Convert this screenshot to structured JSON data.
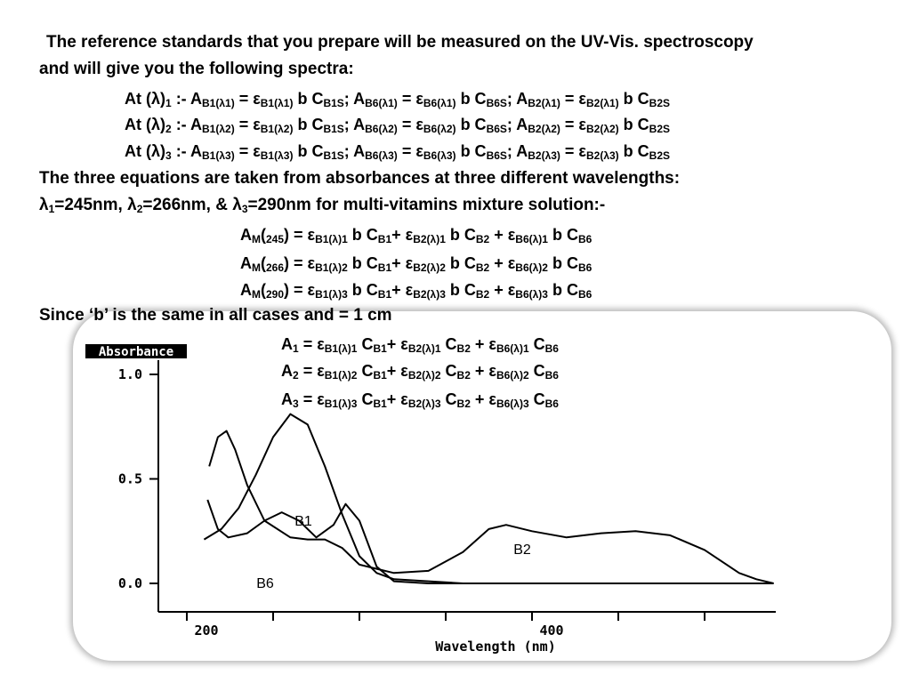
{
  "intro": {
    "line1": "The reference standards that you prepare will be measured on the UV-Vis. spectroscopy",
    "line2": "and will give you the following spectra:"
  },
  "at_equations": [
    {
      "label": "At (λ)",
      "lam_sub": "1",
      "A1": "B1(λ1)",
      "e1": "B1(λ1)",
      "C1": "B1S",
      "A2": "B6(λ1)",
      "e2": "B6(λ1)",
      "C2": "B6S",
      "A3": "B2(λ1)",
      "e3": "B2(λ1)",
      "C3": "B2S"
    },
    {
      "label": "At (λ)",
      "lam_sub": "2",
      "A1": "B1(λ2)",
      "e1": "B1(λ2)",
      "C1": "B1S",
      "A2": "B6(λ2)",
      "e2": "B6(λ2)",
      "C2": "B6S",
      "A3": "B2(λ2)",
      "e3": "B2(λ2)",
      "C3": "B2S"
    },
    {
      "label": "At (λ)",
      "lam_sub": "3",
      "A1": "B1(λ3)",
      "e1": "B1(λ3)",
      "C1": "B1S",
      "A2": "B6(λ3)",
      "e2": "B6(λ3)",
      "C2": "B6S",
      "A3": "B2(λ3)",
      "e3": "B2(λ3)",
      "C3": "B2S"
    }
  ],
  "wavelength_text": {
    "line1": "The three equations are taken from absorbances at three different wavelengths:",
    "lam1": "=245nm, ",
    "lam2": "=266nm, & ",
    "lam3": "=290nm for multi-vitamins mixture solution:-"
  },
  "mixture_equations": [
    {
      "wl": "245",
      "e1": "B1(λ)1",
      "e2": "B2(λ)1",
      "e3": "B6(λ)1"
    },
    {
      "wl": "266",
      "e1": "B1(λ)2",
      "e2": "B2(λ)2",
      "e3": "B6(λ)2"
    },
    {
      "wl": "290",
      "e1": "B1(λ)3",
      "e2": "B2(λ)3",
      "e3": "B6(λ)3"
    }
  ],
  "since_text": "Since ‘b’ is the same in all cases and = 1 cm",
  "final_equations": [
    {
      "A": "1",
      "e1": "B1(λ)1",
      "e2": "B2(λ)1",
      "e3": "B6(λ)1"
    },
    {
      "A": "2",
      "e1": "B1(λ)2",
      "e2": "B2(λ)2",
      "e3": "B6(λ)2"
    },
    {
      "A": "3",
      "e1": "B1(λ)3",
      "e2": "B2(λ)3",
      "e3": "B6(λ)3"
    }
  ],
  "chart_data": {
    "type": "line",
    "ylabel": "Absorbance",
    "xlabel": "Wavelength (nm)",
    "yticks": [
      "1.0",
      "0.5",
      "0.0"
    ],
    "xticks": [
      "200",
      "400"
    ],
    "xlim": [
      200,
      540
    ],
    "ylim": [
      0,
      1.0
    ],
    "series": [
      {
        "name": "B1",
        "x": [
          210,
          220,
          230,
          240,
          250,
          260,
          270,
          280,
          290,
          300,
          310,
          320,
          340,
          360,
          400,
          450,
          500,
          540
        ],
        "y": [
          0.21,
          0.26,
          0.36,
          0.52,
          0.7,
          0.81,
          0.76,
          0.56,
          0.33,
          0.13,
          0.05,
          0.02,
          0.01,
          0.0,
          0.0,
          0.0,
          0.0,
          0.0
        ]
      },
      {
        "name": "B2",
        "x": [
          213,
          218,
          223,
          228,
          235,
          245,
          260,
          270,
          280,
          290,
          300,
          310,
          320,
          340,
          360,
          375,
          385,
          400,
          420,
          440,
          460,
          480,
          500,
          520,
          530,
          540
        ],
        "y": [
          0.56,
          0.7,
          0.73,
          0.64,
          0.47,
          0.3,
          0.22,
          0.21,
          0.21,
          0.17,
          0.09,
          0.07,
          0.05,
          0.06,
          0.15,
          0.26,
          0.28,
          0.25,
          0.22,
          0.24,
          0.25,
          0.23,
          0.16,
          0.05,
          0.02,
          0.0
        ]
      },
      {
        "name": "B6",
        "x": [
          212,
          218,
          224,
          235,
          245,
          255,
          265,
          275,
          285,
          292,
          300,
          310,
          320,
          340,
          380,
          450,
          540
        ],
        "y": [
          0.4,
          0.26,
          0.22,
          0.24,
          0.3,
          0.34,
          0.3,
          0.22,
          0.28,
          0.38,
          0.3,
          0.08,
          0.01,
          0.0,
          0.0,
          0.0,
          0.0
        ]
      }
    ],
    "annotations": [
      "B1",
      "B2",
      "B6"
    ]
  }
}
